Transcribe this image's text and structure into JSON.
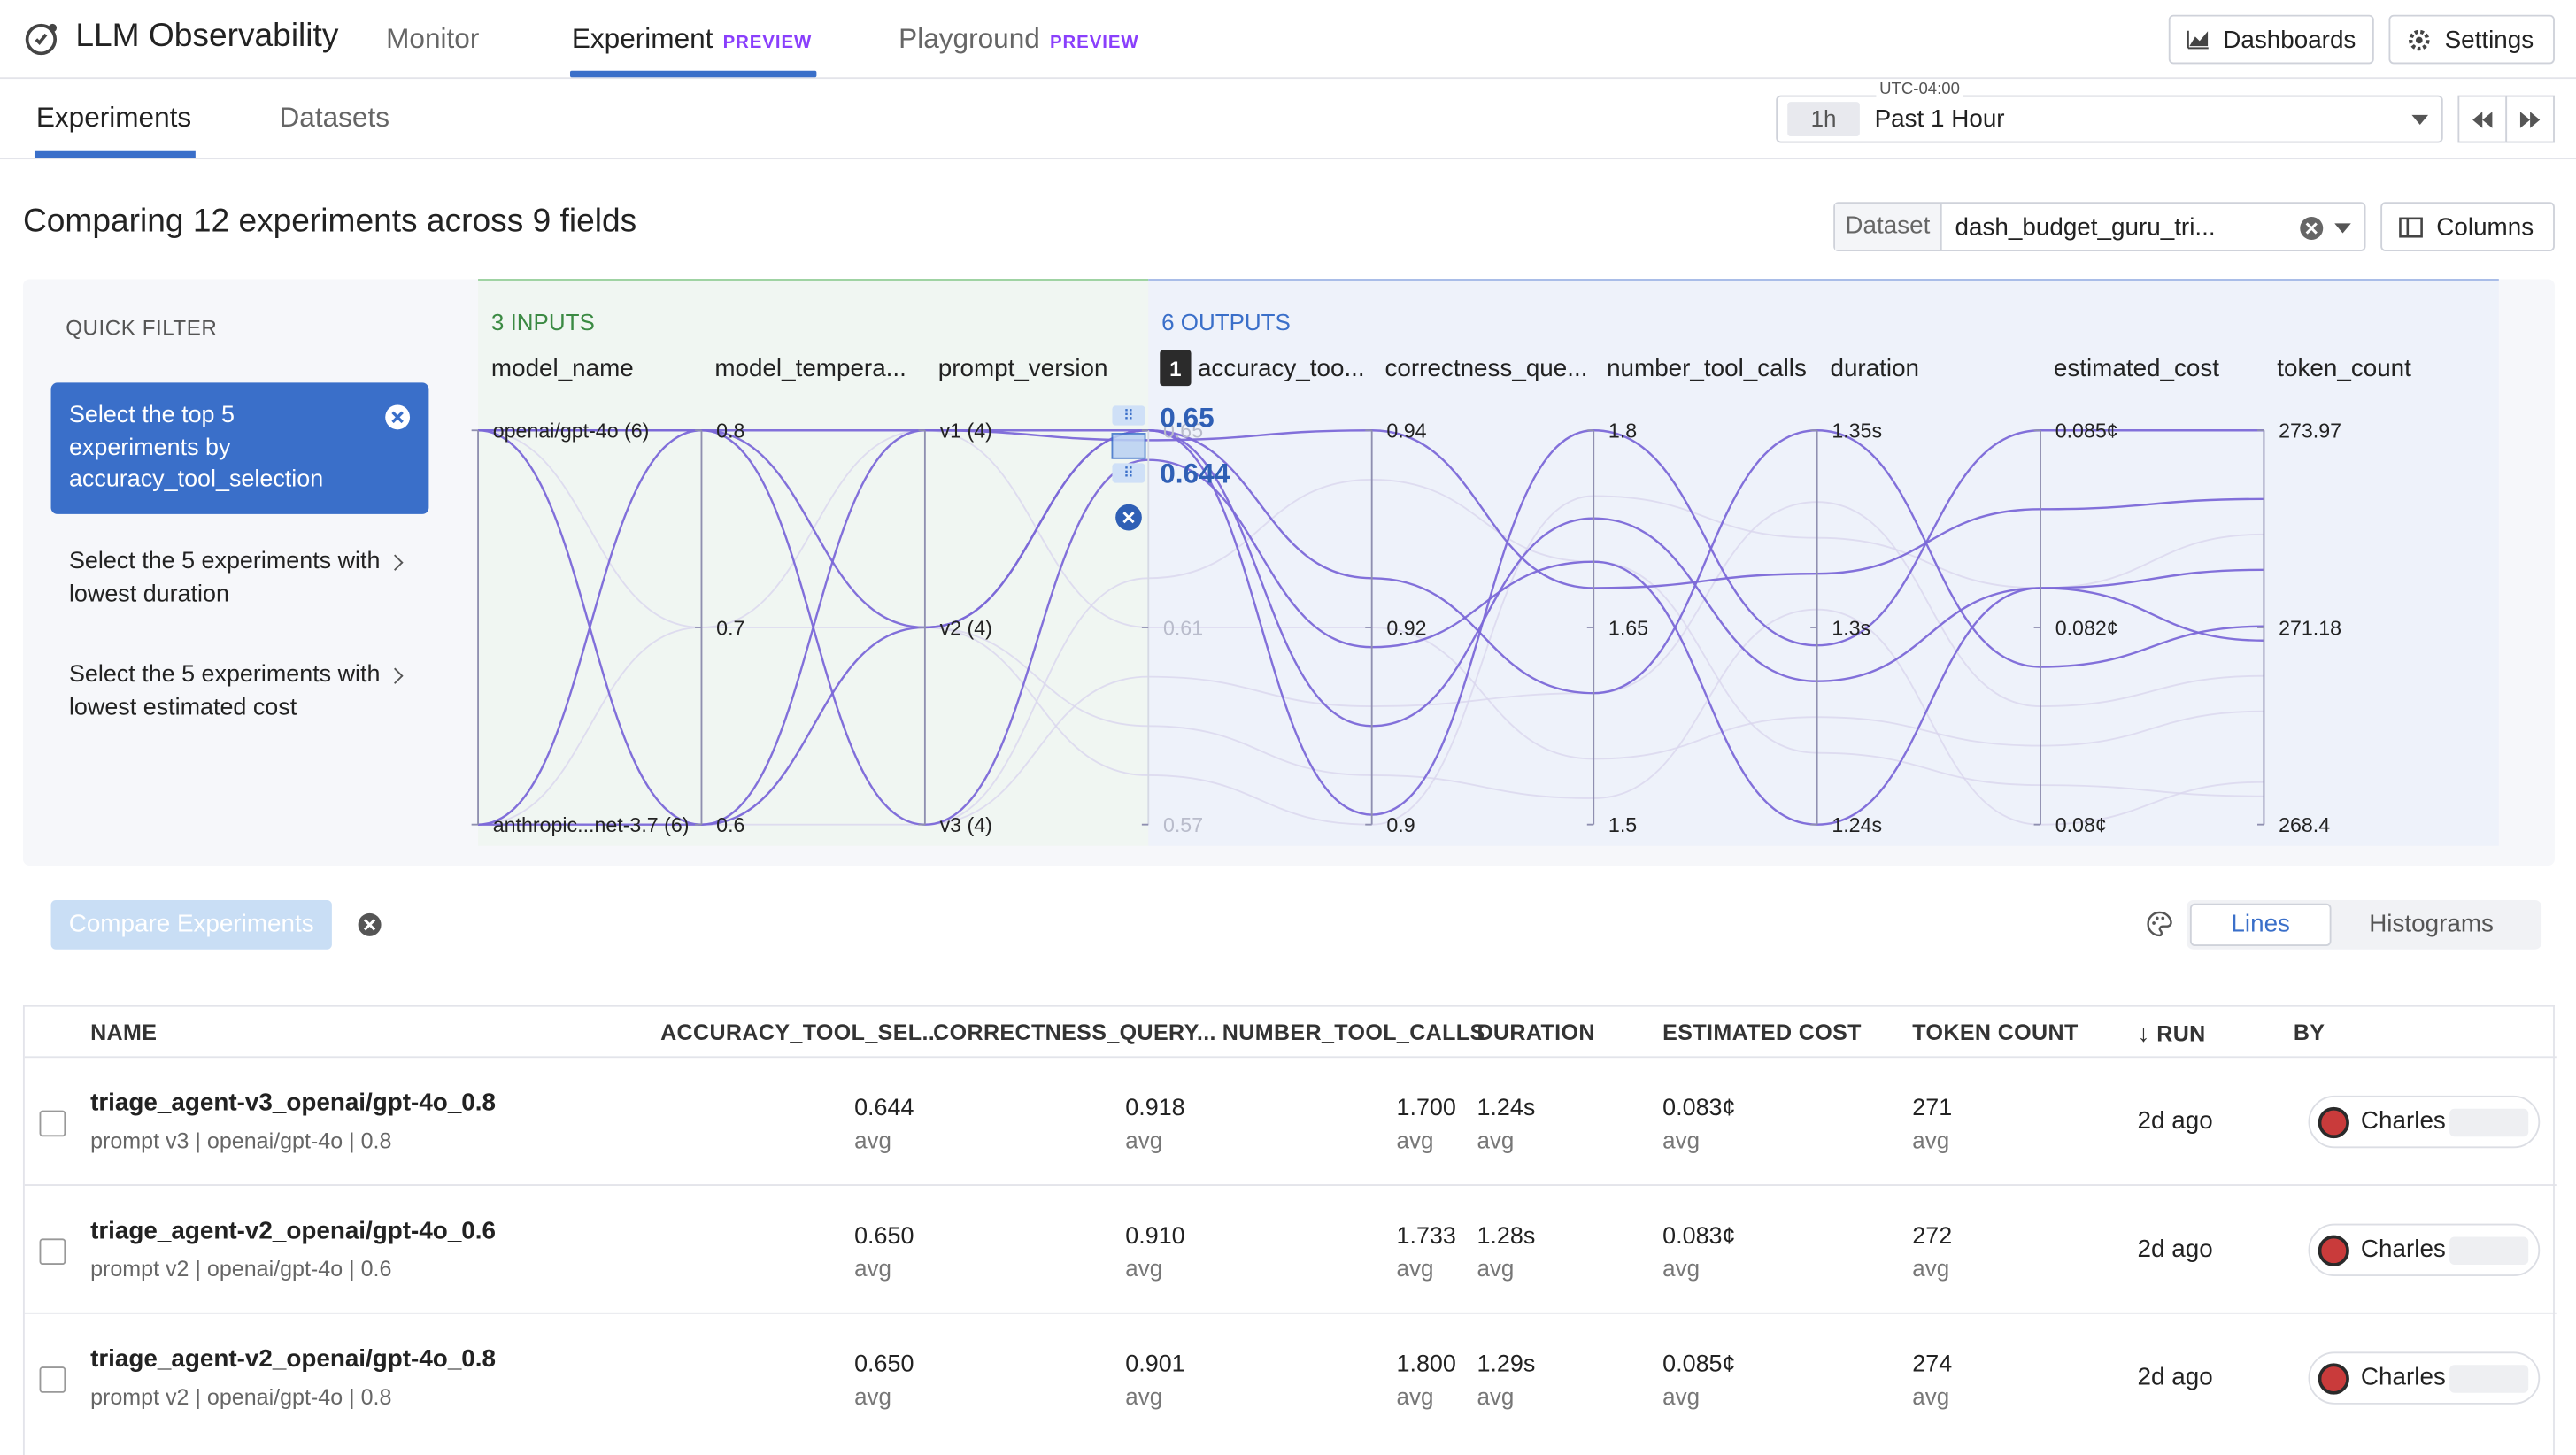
{
  "header": {
    "app_title": "LLM Observability",
    "nav": [
      {
        "label": "Monitor",
        "badge": ""
      },
      {
        "label": "Experiment",
        "badge": "PREVIEW"
      },
      {
        "label": "Playground",
        "badge": "PREVIEW"
      }
    ],
    "dashboards_label": "Dashboards",
    "settings_label": "Settings"
  },
  "subnav": {
    "tabs": [
      "Experiments",
      "Datasets"
    ],
    "timezone": "UTC-04:00",
    "time_chip": "1h",
    "time_label": "Past 1 Hour"
  },
  "toolbar": {
    "compare_title": "Comparing 12 experiments across 9 fields",
    "dataset_label": "Dataset",
    "dataset_value": "dash_budget_guru_tri...",
    "columns_label": "Columns"
  },
  "quick_filter": {
    "title": "QUICK FILTER",
    "active": "Select the top 5 experiments by accuracy_tool_selection",
    "items": [
      "Select the 5 experiments with lowest duration",
      "Select the 5 experiments with lowest estimated cost"
    ]
  },
  "chart_data": {
    "type": "parallel-coordinates",
    "group_labels": {
      "inputs": "3 INPUTS",
      "outputs": "6 OUTPUTS"
    },
    "selected_axis_badge": "1",
    "brush_range": [
      "0.65",
      "0.644"
    ],
    "axes": [
      {
        "name": "model_name",
        "ticks": [
          "openai/gpt-4o (6)",
          "anthropic...net-3.7 (6)"
        ]
      },
      {
        "name": "model_tempera...",
        "ticks": [
          "0.8",
          "0.7",
          "0.6"
        ]
      },
      {
        "name": "prompt_version",
        "ticks": [
          "v1 (4)",
          "v2 (4)",
          "v3 (4)"
        ]
      },
      {
        "name": "accuracy_too...",
        "ticks": [
          "0.65",
          "0.61",
          "0.57"
        ]
      },
      {
        "name": "correctness_que...",
        "ticks": [
          "0.94",
          "0.92",
          "0.9"
        ]
      },
      {
        "name": "number_tool_calls",
        "ticks": [
          "1.8",
          "1.65",
          "1.5"
        ]
      },
      {
        "name": "duration",
        "ticks": [
          "1.35s",
          "1.3s",
          "1.24s"
        ]
      },
      {
        "name": "estimated_cost",
        "ticks": [
          "0.085¢",
          "0.082¢",
          "0.08¢"
        ]
      },
      {
        "name": "token_count",
        "ticks": [
          "273.97",
          "271.18",
          "268.4"
        ]
      }
    ],
    "series": [
      {
        "values": [
          "openai/gpt-4o",
          0.8,
          "v3",
          0.644,
          0.918,
          1.7,
          1.24,
          0.083,
          271
        ],
        "highlight": true
      },
      {
        "values": [
          "openai/gpt-4o",
          0.6,
          "v2",
          0.65,
          0.91,
          1.733,
          1.28,
          0.083,
          272
        ],
        "highlight": true
      },
      {
        "values": [
          "openai/gpt-4o",
          0.8,
          "v2",
          0.65,
          0.901,
          1.8,
          1.29,
          0.085,
          274
        ],
        "highlight": true
      },
      {
        "values": [
          "anthropic...net-3.7",
          0.8,
          "v1",
          0.65,
          0.925,
          1.6,
          1.35,
          0.082,
          271.2
        ],
        "highlight": true
      },
      {
        "values": [
          "anthropic...net-3.7",
          0.6,
          "v1",
          0.648,
          0.94,
          1.68,
          1.31,
          0.084,
          273
        ],
        "highlight": true
      },
      {
        "values": [
          "openai/gpt-4o",
          0.7,
          "v1",
          0.61,
          0.92,
          1.55,
          1.27,
          0.081,
          270
        ],
        "highlight": false
      },
      {
        "values": [
          "anthropic...net-3.7",
          0.7,
          "v2",
          0.59,
          0.905,
          1.52,
          1.3,
          0.08,
          269
        ],
        "highlight": false
      },
      {
        "values": [
          "anthropic...net-3.7",
          0.8,
          "v3",
          0.6,
          0.912,
          1.6,
          1.33,
          0.0815,
          270.5
        ],
        "highlight": false
      },
      {
        "values": [
          "openai/gpt-4o",
          0.6,
          "v3",
          0.62,
          0.935,
          1.7,
          1.26,
          0.0805,
          268.8
        ],
        "highlight": false
      },
      {
        "values": [
          "anthropic...net-3.7",
          0.6,
          "v2",
          0.58,
          0.9,
          1.75,
          1.32,
          0.083,
          272.5
        ],
        "highlight": false
      }
    ]
  },
  "actions": {
    "compare_label": "Compare Experiments",
    "view_modes": [
      "Lines",
      "Histograms"
    ]
  },
  "table": {
    "columns": [
      "NAME",
      "ACCURACY_TOOL_SEL...",
      "CORRECTNESS_QUERY...",
      "NUMBER_TOOL_CALLS",
      "DURATION",
      "ESTIMATED COST",
      "TOKEN COUNT",
      "RUN",
      "BY"
    ],
    "avg_label": "avg",
    "rows": [
      {
        "name": "triage_agent-v3_openai/gpt-4o_0.8",
        "sub": "prompt v3 | openai/gpt-4o | 0.8",
        "accuracy": "0.644",
        "correctness": "0.918",
        "tool_calls": "1.700",
        "duration": "1.24s",
        "cost": "0.083¢",
        "tokens": "271",
        "run": "2d ago",
        "by": "Charles"
      },
      {
        "name": "triage_agent-v2_openai/gpt-4o_0.6",
        "sub": "prompt v2 | openai/gpt-4o | 0.6",
        "accuracy": "0.650",
        "correctness": "0.910",
        "tool_calls": "1.733",
        "duration": "1.28s",
        "cost": "0.083¢",
        "tokens": "272",
        "run": "2d ago",
        "by": "Charles"
      },
      {
        "name": "triage_agent-v2_openai/gpt-4o_0.8",
        "sub": "prompt v2 | openai/gpt-4o | 0.8",
        "accuracy": "0.650",
        "correctness": "0.901",
        "tool_calls": "1.800",
        "duration": "1.29s",
        "cost": "0.085¢",
        "tokens": "274",
        "run": "2d ago",
        "by": "Charles"
      }
    ]
  },
  "colors": {
    "accent": "#3a6fc9",
    "preview": "#8a3ffc",
    "line": "#7b68d8",
    "line_faded": "#d9d6ee"
  }
}
